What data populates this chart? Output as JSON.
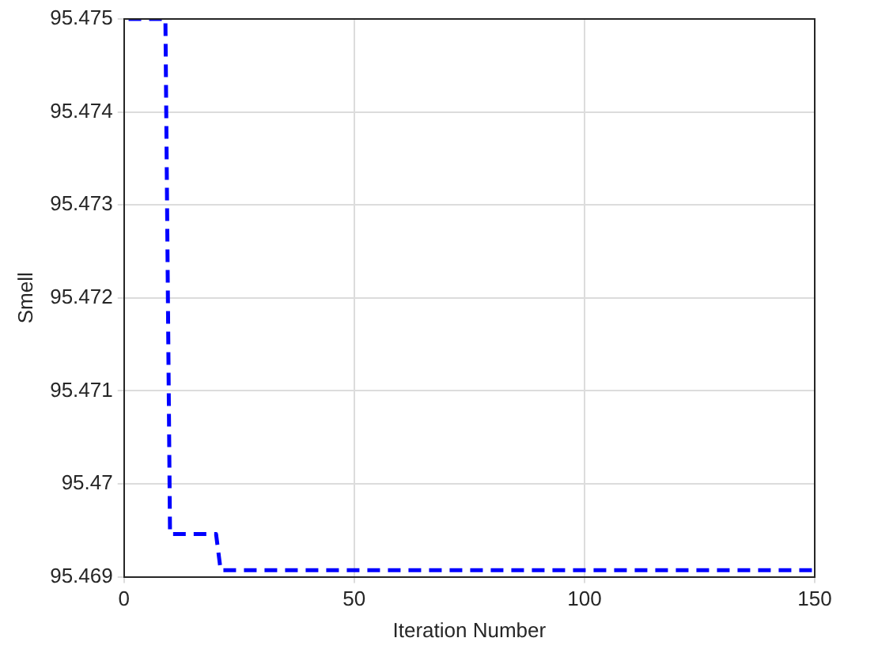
{
  "chart_data": {
    "type": "line",
    "xlabel": "Iteration Number",
    "ylabel": "Smell",
    "x": [
      1,
      9,
      10,
      20,
      21,
      150
    ],
    "series": [
      {
        "color": "#0000ff",
        "values": [
          95.475,
          95.475,
          95.46946,
          95.46946,
          95.46907,
          95.46907
        ]
      }
    ],
    "xlim": [
      0,
      150
    ],
    "xticks": [
      0,
      50,
      100,
      150
    ],
    "ylim": [
      95.469,
      95.475
    ],
    "yticks": [
      95.469,
      95.47,
      95.471,
      95.472,
      95.473,
      95.474,
      95.475
    ],
    "grid": true,
    "line_style": "dashed",
    "marker": "none",
    "legend": false
  }
}
